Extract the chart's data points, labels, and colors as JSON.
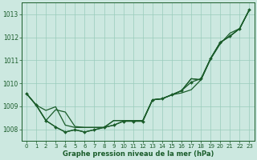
{
  "xlabel": "Graphe pression niveau de la mer (hPa)",
  "xlim": [
    -0.5,
    23.5
  ],
  "ylim": [
    1007.5,
    1013.5
  ],
  "yticks": [
    1008,
    1009,
    1010,
    1011,
    1012,
    1013
  ],
  "xticks": [
    0,
    1,
    2,
    3,
    4,
    5,
    6,
    7,
    8,
    9,
    10,
    11,
    12,
    13,
    14,
    15,
    16,
    17,
    18,
    19,
    20,
    21,
    22,
    23
  ],
  "background_color": "#cce8e0",
  "grid_color": "#99ccbb",
  "line_color": "#1a5c2a",
  "series": [
    [
      1009.55,
      1009.05,
      1008.38,
      1008.1,
      1007.88,
      1007.98,
      1007.88,
      1007.98,
      1008.08,
      1008.18,
      1008.35,
      1008.35,
      1008.35,
      1009.28,
      1009.33,
      1009.5,
      1009.68,
      1010.05,
      1010.2,
      1011.08,
      1011.78,
      1012.05,
      1012.38,
      1013.2
    ],
    [
      1009.55,
      1009.05,
      1008.38,
      1008.85,
      1008.75,
      1008.12,
      1008.08,
      1008.08,
      1008.08,
      1008.38,
      1008.38,
      1008.38,
      1008.38,
      1009.28,
      1009.33,
      1009.5,
      1009.68,
      1010.2,
      1010.15,
      1011.08,
      1011.78,
      1012.05,
      1012.38,
      1013.2
    ],
    [
      1009.55,
      1009.05,
      1008.82,
      1008.98,
      1008.18,
      1008.08,
      1008.08,
      1008.08,
      1008.08,
      1008.38,
      1008.38,
      1008.38,
      1008.38,
      1009.28,
      1009.33,
      1009.5,
      1009.68,
      1010.2,
      1010.15,
      1011.08,
      1011.78,
      1012.05,
      1012.38,
      1013.2
    ],
    [
      1009.55,
      1009.05,
      1008.38,
      1008.1,
      1007.88,
      1007.98,
      1007.88,
      1007.98,
      1008.08,
      1008.18,
      1008.35,
      1008.35,
      1008.35,
      1009.28,
      1009.33,
      1009.5,
      1009.58,
      1009.72,
      1010.15,
      1011.05,
      1011.72,
      1012.18,
      1012.38,
      1013.2
    ]
  ],
  "marker_series": 0,
  "marker": "D",
  "markersize": 2.0
}
